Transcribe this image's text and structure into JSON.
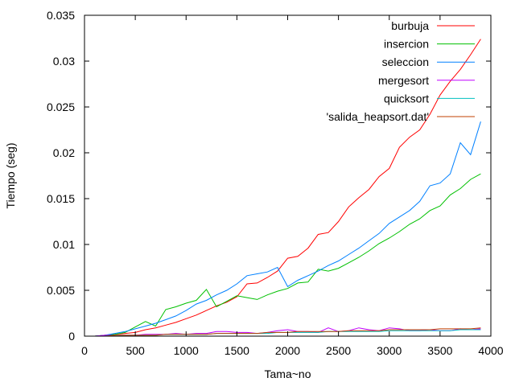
{
  "chart_data": {
    "type": "line",
    "xlabel": "Tama~no",
    "ylabel": "Tiempo (seg)",
    "xlim": [
      0,
      4000
    ],
    "ylim": [
      0,
      0.035
    ],
    "xticks": [
      0,
      500,
      1000,
      1500,
      2000,
      2500,
      3000,
      3500,
      4000
    ],
    "yticks": [
      0,
      0.005,
      0.01,
      0.015,
      0.02,
      0.025,
      0.03,
      0.035
    ],
    "xtick_labels": [
      "0",
      "500",
      "1000",
      "1500",
      "2000",
      "2500",
      "3000",
      "3500",
      "4000"
    ],
    "ytick_labels": [
      "0",
      "0.005",
      "0.01",
      "0.015",
      "0.02",
      "0.025",
      "0.03",
      "0.035"
    ],
    "grid": false,
    "legend_position": "top-right",
    "x": [
      100,
      200,
      300,
      400,
      500,
      600,
      700,
      800,
      900,
      1000,
      1100,
      1200,
      1300,
      1400,
      1500,
      1600,
      1700,
      1800,
      1900,
      2000,
      2100,
      2200,
      2300,
      2400,
      2500,
      2600,
      2700,
      2800,
      2900,
      3000,
      3100,
      3200,
      3300,
      3400,
      3500,
      3600,
      3700,
      3800,
      3900
    ],
    "series": [
      {
        "name": "burbuja",
        "color": "#ff0000",
        "values": [
          0.0,
          0.0001,
          0.0002,
          0.0003,
          0.0004,
          0.0007,
          0.0009,
          0.0012,
          0.0015,
          0.0019,
          0.0023,
          0.0028,
          0.0033,
          0.0037,
          0.0043,
          0.0057,
          0.0058,
          0.0064,
          0.0071,
          0.0085,
          0.0087,
          0.0096,
          0.0111,
          0.0113,
          0.0125,
          0.0141,
          0.0151,
          0.016,
          0.0174,
          0.0183,
          0.0206,
          0.0217,
          0.0225,
          0.0242,
          0.0263,
          0.0278,
          0.0291,
          0.0307,
          0.0324
        ]
      },
      {
        "name": "insercion",
        "color": "#00c000",
        "values": [
          0.0,
          0.0001,
          0.0002,
          0.0004,
          0.001,
          0.0016,
          0.0011,
          0.0029,
          0.0032,
          0.0036,
          0.0039,
          0.0051,
          0.0032,
          0.0038,
          0.0044,
          0.0042,
          0.004,
          0.0045,
          0.0049,
          0.0052,
          0.0058,
          0.0059,
          0.0073,
          0.0071,
          0.0074,
          0.008,
          0.0086,
          0.0093,
          0.0101,
          0.0107,
          0.0114,
          0.0122,
          0.0128,
          0.0137,
          0.0142,
          0.0154,
          0.0161,
          0.0171,
          0.0177
        ]
      },
      {
        "name": "seleccion",
        "color": "#0080ff",
        "values": [
          0.0,
          0.0001,
          0.0003,
          0.0005,
          0.0008,
          0.0011,
          0.0014,
          0.0018,
          0.0022,
          0.0028,
          0.0035,
          0.0039,
          0.0045,
          0.005,
          0.0057,
          0.0066,
          0.0068,
          0.007,
          0.0075,
          0.0054,
          0.0061,
          0.0066,
          0.0071,
          0.0077,
          0.0082,
          0.0089,
          0.0096,
          0.0104,
          0.0112,
          0.0123,
          0.013,
          0.0137,
          0.0147,
          0.0164,
          0.0167,
          0.0177,
          0.0211,
          0.0198,
          0.0234
        ]
      },
      {
        "name": "mergesort",
        "color": "#c000ff",
        "values": [
          0.0,
          0.0001,
          0.0001,
          0.0001,
          0.0001,
          0.0002,
          0.0002,
          0.0002,
          0.0003,
          0.0002,
          0.0003,
          0.0003,
          0.0005,
          0.0005,
          0.0004,
          0.0004,
          0.0003,
          0.0004,
          0.0006,
          0.0007,
          0.0005,
          0.0005,
          0.0004,
          0.0009,
          0.0005,
          0.0006,
          0.0009,
          0.0007,
          0.0006,
          0.0009,
          0.0008,
          0.0006,
          0.0006,
          0.0007,
          0.0006,
          0.0006,
          0.0008,
          0.0007,
          0.0008
        ]
      },
      {
        "name": "quicksort",
        "color": "#00c0c0",
        "values": [
          0.0,
          0.0,
          0.0001,
          0.0001,
          0.0001,
          0.0001,
          0.0001,
          0.0002,
          0.0002,
          0.0002,
          0.0002,
          0.0002,
          0.0003,
          0.0003,
          0.0003,
          0.0003,
          0.0003,
          0.0003,
          0.0004,
          0.0004,
          0.0004,
          0.0004,
          0.0004,
          0.0005,
          0.0005,
          0.0005,
          0.0005,
          0.0005,
          0.0005,
          0.0006,
          0.0006,
          0.0006,
          0.0006,
          0.0006,
          0.0006,
          0.0006,
          0.0007,
          0.0007,
          0.0007
        ]
      },
      {
        "name": "'salida_heapsort.dat'",
        "color": "#c04000",
        "values": [
          0.0,
          0.0,
          0.0001,
          0.0001,
          0.0001,
          0.0001,
          0.0001,
          0.0002,
          0.0002,
          0.0002,
          0.0002,
          0.0002,
          0.0003,
          0.0003,
          0.0003,
          0.0003,
          0.0003,
          0.0004,
          0.0004,
          0.0004,
          0.0005,
          0.0005,
          0.0005,
          0.0005,
          0.0005,
          0.0006,
          0.0006,
          0.0006,
          0.0006,
          0.0007,
          0.0007,
          0.0007,
          0.0007,
          0.0007,
          0.0008,
          0.0008,
          0.0008,
          0.0008,
          0.0009
        ]
      }
    ]
  }
}
